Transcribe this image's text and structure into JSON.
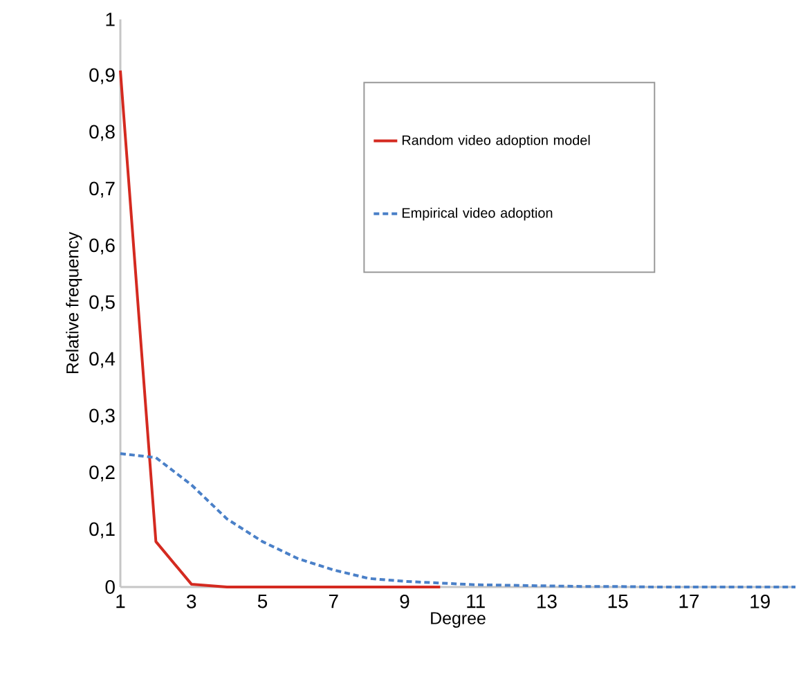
{
  "chart_data": {
    "type": "line",
    "xlabel": "Degree",
    "ylabel": "Relative frequency",
    "xlim": [
      1,
      20
    ],
    "ylim": [
      0,
      1
    ],
    "xticks": [
      1,
      3,
      5,
      7,
      9,
      11,
      13,
      15,
      17,
      19
    ],
    "yticks": [
      0,
      {
        "value": 0.1,
        "label": "0,1"
      },
      {
        "value": 0.2,
        "label": "0,2"
      },
      {
        "value": 0.3,
        "label": "0,3"
      },
      {
        "value": 0.4,
        "label": "0,4"
      },
      {
        "value": 0.5,
        "label": "0,5"
      },
      {
        "value": 0.6,
        "label": "0,6"
      },
      {
        "value": 0.7,
        "label": "0,7"
      },
      {
        "value": 0.8,
        "label": "0,8"
      },
      {
        "value": 0.9,
        "label": "0,9"
      },
      1
    ],
    "grid": false,
    "legend": "top right",
    "series": [
      {
        "name": "Random video adoption model",
        "color": "#d42a20",
        "line_style": "solid",
        "x": [
          1,
          2,
          3,
          4,
          5,
          6,
          7,
          8,
          9,
          10
        ],
        "values": [
          0.91,
          0.08,
          0.005,
          0,
          0,
          0,
          0,
          0,
          0,
          0
        ]
      },
      {
        "name": "Empirical video adoption",
        "color": "#4a80c8",
        "line_style": "dashed",
        "x": [
          1,
          2,
          3,
          4,
          5,
          6,
          7,
          8,
          9,
          10,
          11,
          12,
          13,
          14,
          15,
          16,
          17,
          18,
          19,
          20
        ],
        "values": [
          0.235,
          0.228,
          0.18,
          0.12,
          0.08,
          0.05,
          0.03,
          0.015,
          0.01,
          0.007,
          0.004,
          0.003,
          0.002,
          0.001,
          0.001,
          0,
          0,
          0,
          0,
          0
        ]
      }
    ]
  }
}
